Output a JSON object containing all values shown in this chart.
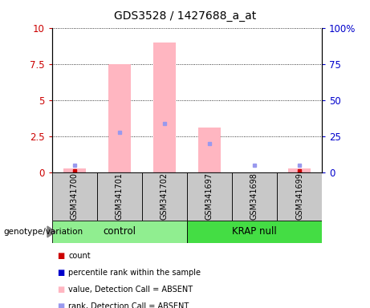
{
  "title": "GDS3528 / 1427688_a_at",
  "samples": [
    "GSM341700",
    "GSM341701",
    "GSM341702",
    "GSM341697",
    "GSM341698",
    "GSM341699"
  ],
  "groups": [
    {
      "label": "control",
      "indices": [
        0,
        1,
        2
      ],
      "color": "#90EE90"
    },
    {
      "label": "KRAP null",
      "indices": [
        3,
        4,
        5
      ],
      "color": "#44DD44"
    }
  ],
  "pink_bar_values": [
    0.3,
    7.5,
    9.0,
    3.1,
    0.0,
    0.3
  ],
  "blue_sq_values": [
    0.5,
    2.8,
    3.4,
    2.0,
    0.5,
    0.5
  ],
  "red_sq_values": [
    0.3,
    0.0,
    0.0,
    0.0,
    0.0,
    0.3
  ],
  "ylim_left": [
    0,
    10
  ],
  "ylim_right": [
    0,
    100
  ],
  "yticks_left": [
    0,
    2.5,
    5,
    7.5,
    10
  ],
  "yticks_right": [
    0,
    25,
    50,
    75,
    100
  ],
  "ytick_labels_left": [
    "0",
    "2.5",
    "5",
    "7.5",
    "10"
  ],
  "ytick_labels_right": [
    "0",
    "25",
    "50",
    "75",
    "100%"
  ],
  "left_axis_color": "#CC0000",
  "right_axis_color": "#0000CC",
  "pink_bar_color": "#FFB6C1",
  "blue_sq_color": "#9999EE",
  "red_sq_color": "#CC0000",
  "grid_color": "black",
  "sample_box_color": "#C8C8C8",
  "background_color": "#FFFFFF",
  "genotype_label": "genotype/variation",
  "legend_items": [
    {
      "color": "#CC0000",
      "label": "count"
    },
    {
      "color": "#0000CC",
      "label": "percentile rank within the sample"
    },
    {
      "color": "#FFB6C1",
      "label": "value, Detection Call = ABSENT"
    },
    {
      "color": "#9999EE",
      "label": "rank, Detection Call = ABSENT"
    }
  ],
  "fig_width": 4.61,
  "fig_height": 3.84,
  "dpi": 100
}
